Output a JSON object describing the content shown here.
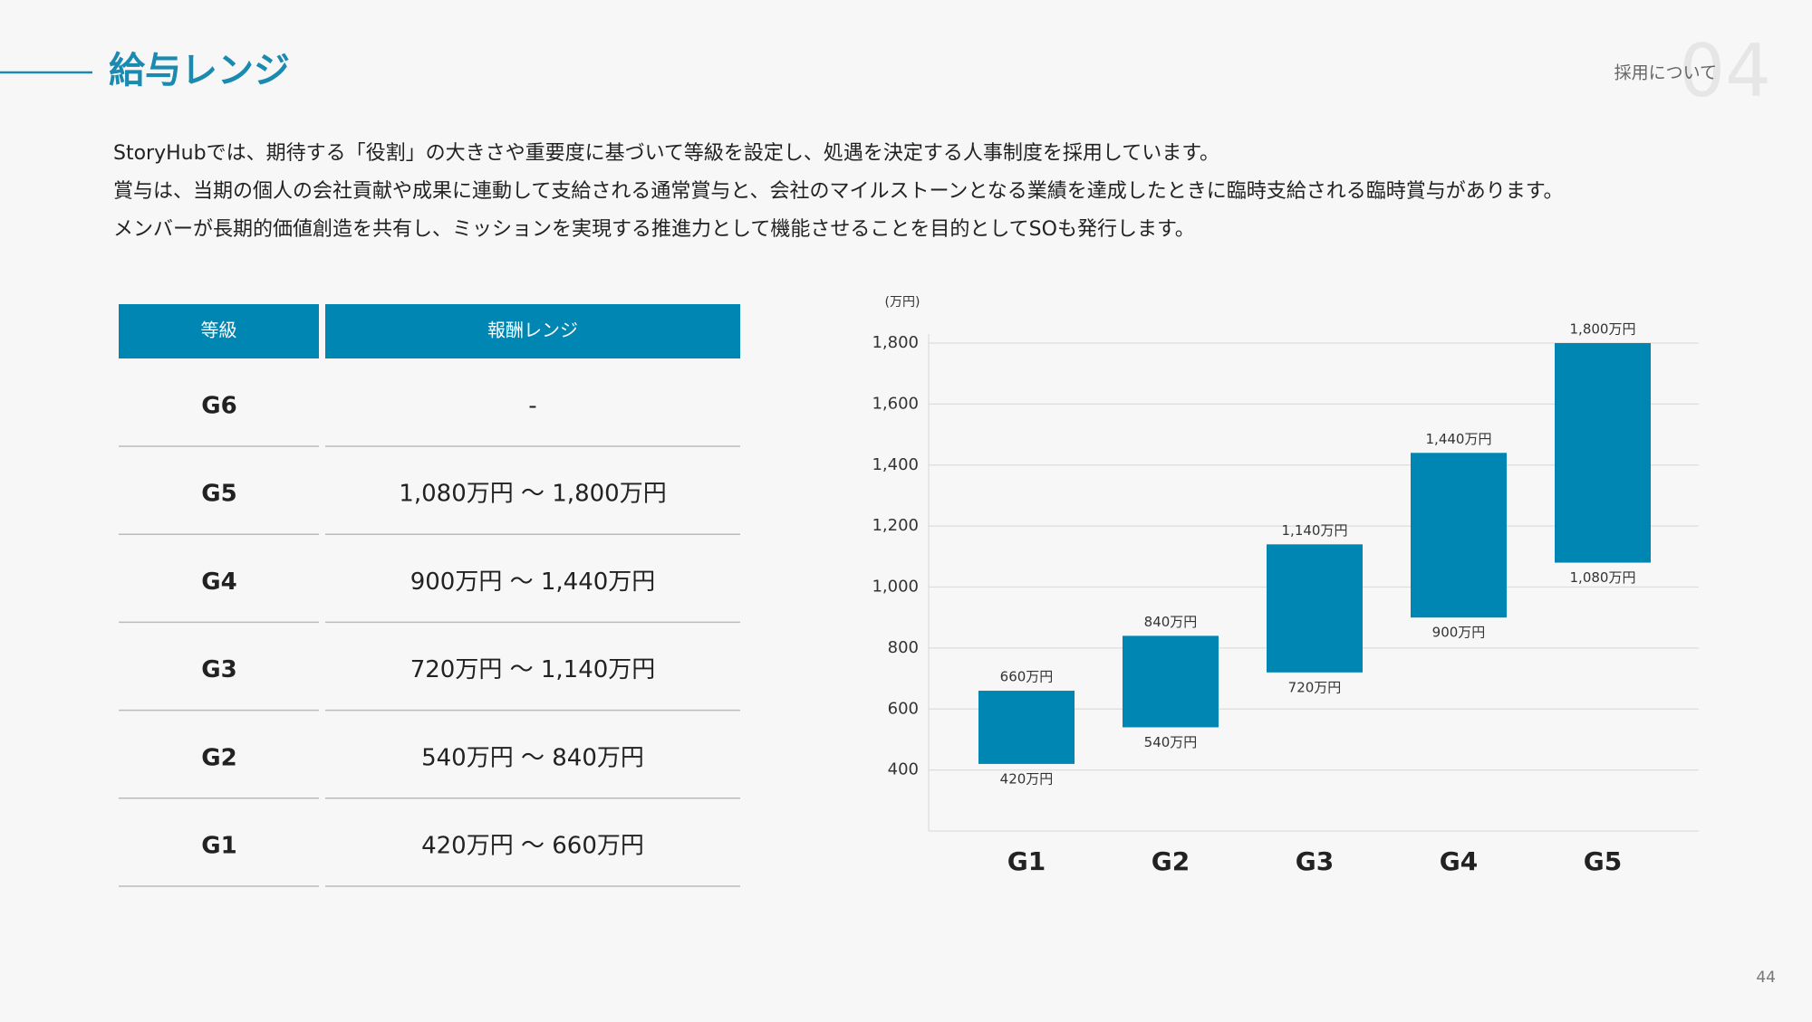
{
  "header": {
    "title": "給与レンジ",
    "section": "採用について",
    "section_number": "04"
  },
  "body": [
    "StoryHubでは、期待する「役割」の大きさや重要度に基づいて等級を設定し、処遇を決定する人事制度を採用しています。",
    "賞与は、当期の個人の会社貢献や成果に連動して支給される通常賞与と、会社のマイルストーンとなる業績を達成したときに臨時支給される臨時賞与があります。",
    "メンバーが長期的価値創造を共有し、ミッションを実現する推進力として機能させることを目的としてSOも発行します。"
  ],
  "table": {
    "columns": [
      "等級",
      "報酬レンジ"
    ],
    "rows": [
      [
        "G6",
        "-"
      ],
      [
        "G5",
        "1,080万円 〜 1,800万円"
      ],
      [
        "G4",
        "900万円 〜 1,440万円"
      ],
      [
        "G3",
        "720万円 〜 1,140万円"
      ],
      [
        "G2",
        "540万円 〜 840万円"
      ],
      [
        "G1",
        "420万円 〜 660万円"
      ]
    ]
  },
  "chart_data": {
    "type": "floating_bar",
    "unit_label": "(万円)",
    "color": "#0086b3",
    "grid": true,
    "categories": [
      "G1",
      "G2",
      "G3",
      "G4",
      "G5"
    ],
    "low": [
      420,
      540,
      720,
      900,
      1080
    ],
    "high": [
      660,
      840,
      1140,
      1440,
      1800
    ],
    "low_value_labels": [
      "420万円",
      "540万円",
      "720万円",
      "900万円",
      "1,080万円"
    ],
    "high_value_labels": [
      "660万円",
      "840万円",
      "1,140万円",
      "1,440万円",
      "1,800万円"
    ],
    "ylim": [
      200,
      1800
    ],
    "yticks": [
      400,
      600,
      800,
      {
        "value": 1000,
        "label": "1,000"
      },
      {
        "value": 1200,
        "label": "1,200"
      },
      {
        "value": 1400,
        "label": "1,400"
      },
      {
        "value": 1600,
        "label": "1,600"
      },
      {
        "value": 1800,
        "label": "1,800"
      }
    ]
  },
  "page_number": "44"
}
